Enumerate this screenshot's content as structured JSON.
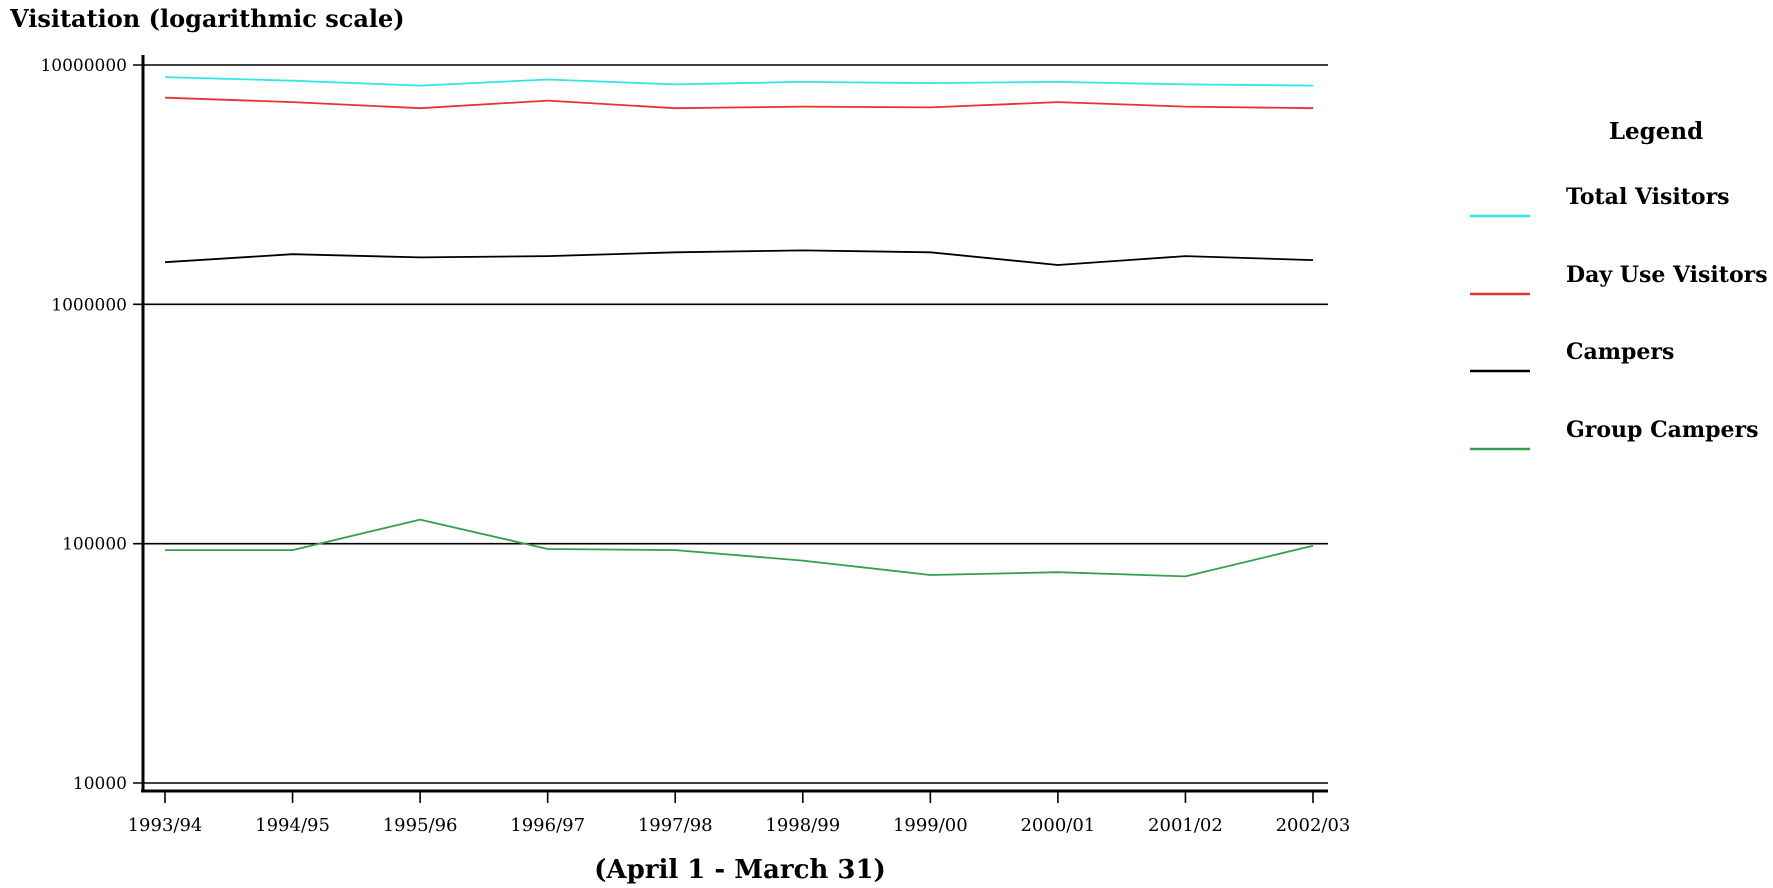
{
  "chart_data": {
    "type": "line",
    "title": "",
    "ylabel": "Visitation (logarithmic scale)",
    "xlabel": "(April 1 - March 31)",
    "yscale": "log",
    "ylim": [
      10000,
      10000000
    ],
    "yticks": [
      10000,
      100000,
      1000000,
      10000000
    ],
    "ytick_labels": [
      "10000",
      "100000",
      "1000000",
      "10000000"
    ],
    "grid": "horizontal",
    "categories": [
      "1993/94",
      "1994/95",
      "1995/96",
      "1996/97",
      "1997/98",
      "1998/99",
      "1999/00",
      "2000/01",
      "2001/02",
      "2002/03"
    ],
    "legend": {
      "title": "Legend",
      "placement": "right"
    },
    "series": [
      {
        "name": "Total Visitors",
        "color": "#33e6e6",
        "values": [
          8900000,
          8600000,
          8200000,
          8700000,
          8300000,
          8500000,
          8400000,
          8500000,
          8300000,
          8200000
        ]
      },
      {
        "name": "Day Use Visitors",
        "color": "#e63333",
        "values": [
          7300000,
          7000000,
          6600000,
          7100000,
          6600000,
          6700000,
          6650000,
          7000000,
          6700000,
          6600000
        ]
      },
      {
        "name": "Campers",
        "color": "#000000",
        "values": [
          1500000,
          1620000,
          1570000,
          1590000,
          1650000,
          1680000,
          1650000,
          1460000,
          1590000,
          1530000
        ]
      },
      {
        "name": "Group Campers",
        "color": "#33a04d",
        "values": [
          94000,
          94000,
          126000,
          95000,
          94000,
          85000,
          74000,
          76000,
          73000,
          98000
        ]
      }
    ]
  }
}
